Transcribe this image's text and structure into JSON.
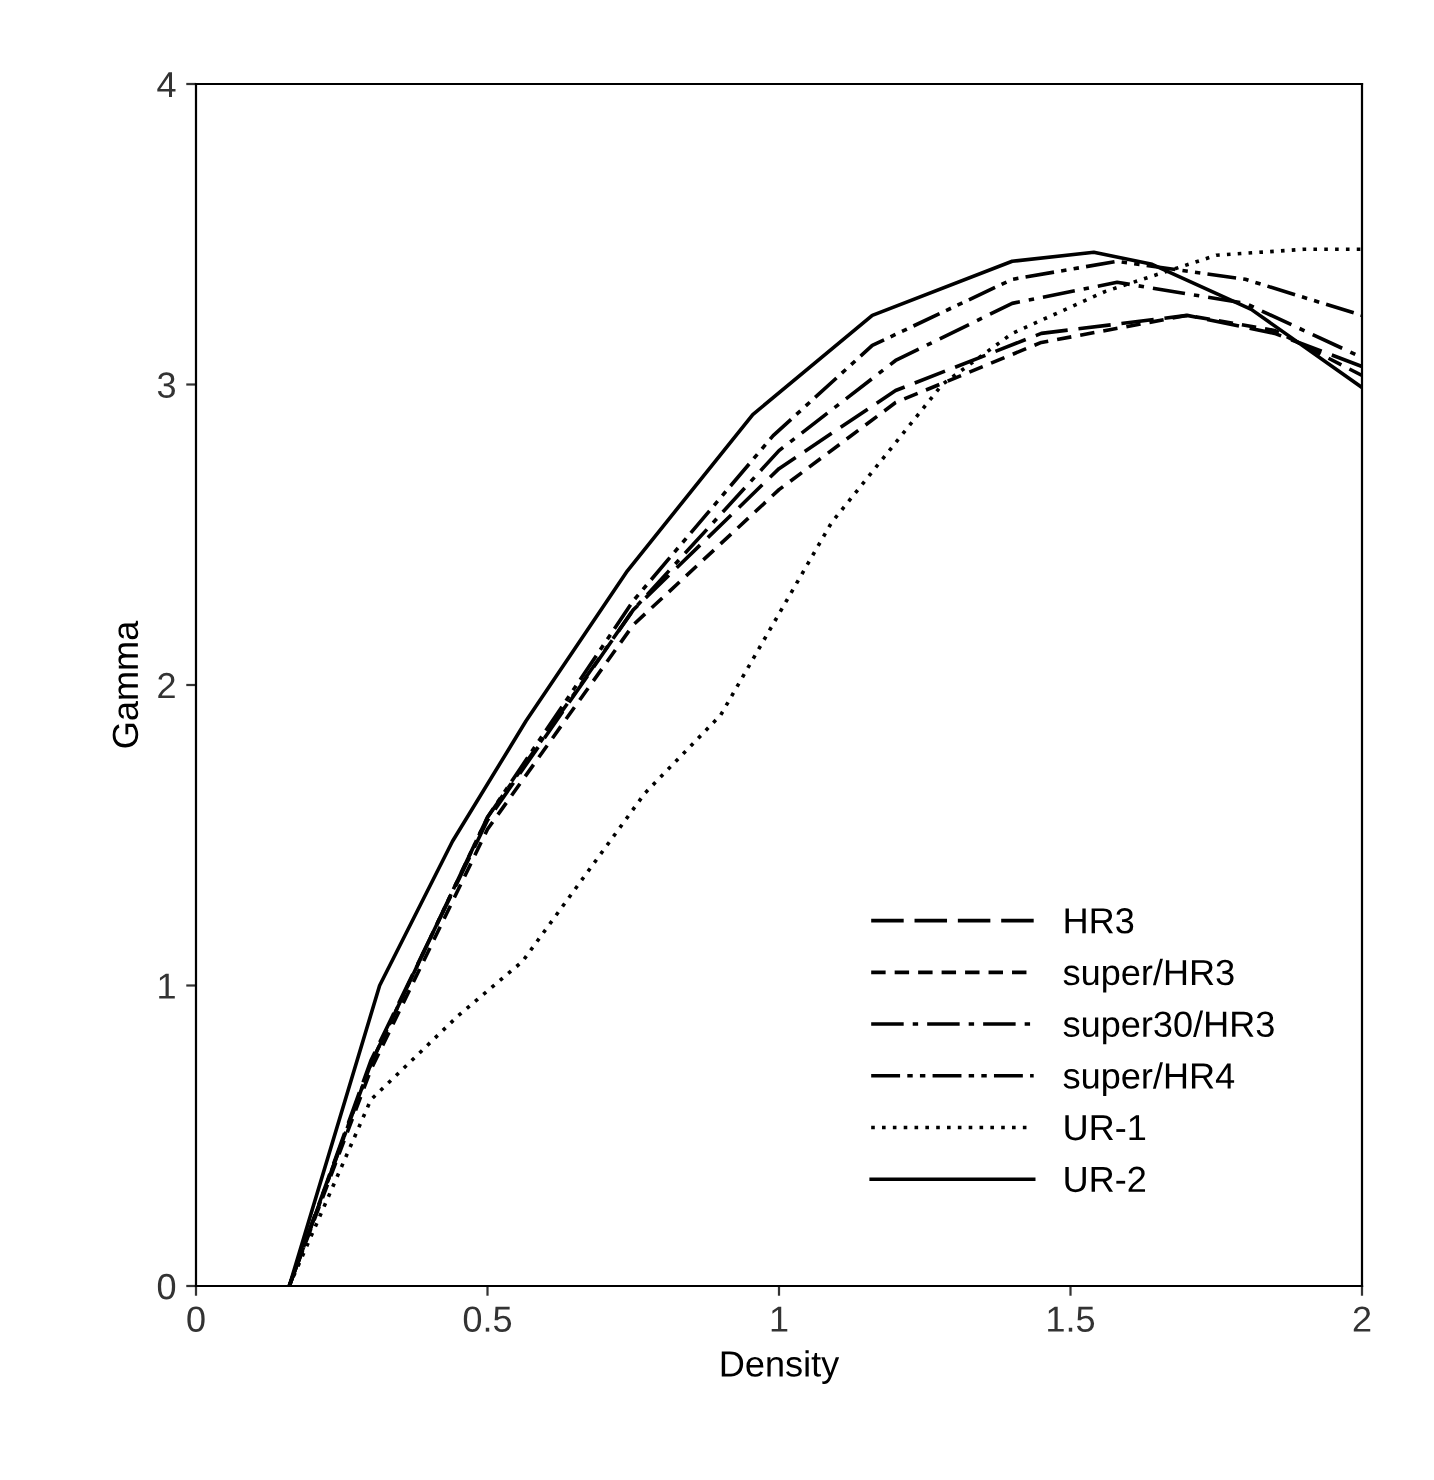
{
  "chart_data": {
    "type": "line",
    "xlabel": "Density",
    "ylabel": "Gamma",
    "xlim": [
      0,
      2
    ],
    "ylim": [
      0,
      4
    ],
    "xticks": [
      0,
      0.5,
      1,
      1.5,
      2
    ],
    "yticks": [
      0,
      1,
      2,
      3,
      4
    ],
    "grid": false,
    "legend": "bottom right",
    "color": "#000000",
    "series": [
      {
        "name": "HR3",
        "line_style": "longdash",
        "x": [
          0.16,
          0.3,
          0.5,
          0.75,
          1.0,
          1.2,
          1.45,
          1.7,
          1.85,
          2.0
        ],
        "values": [
          0,
          0.75,
          1.55,
          2.25,
          2.72,
          2.98,
          3.17,
          3.23,
          3.17,
          3.06
        ]
      },
      {
        "name": "super/HR3",
        "line_style": "dashed",
        "x": [
          0.16,
          0.3,
          0.5,
          0.75,
          1.0,
          1.2,
          1.45,
          1.7,
          1.85,
          2.0
        ],
        "values": [
          0,
          0.72,
          1.52,
          2.2,
          2.65,
          2.94,
          3.14,
          3.23,
          3.18,
          3.03
        ]
      },
      {
        "name": "super30/HR3",
        "line_style": "dashdot",
        "x": [
          0.16,
          0.3,
          0.5,
          0.75,
          1.0,
          1.2,
          1.4,
          1.58,
          1.8,
          2.0
        ],
        "values": [
          0,
          0.74,
          1.56,
          2.25,
          2.78,
          3.08,
          3.27,
          3.34,
          3.27,
          3.09
        ]
      },
      {
        "name": "super/HR4",
        "line_style": "dashdotdot",
        "x": [
          0.16,
          0.3,
          0.5,
          0.75,
          0.99,
          1.16,
          1.4,
          1.58,
          1.8,
          2.0
        ],
        "values": [
          0,
          0.74,
          1.56,
          2.28,
          2.83,
          3.13,
          3.35,
          3.41,
          3.35,
          3.23
        ]
      },
      {
        "name": "UR-1",
        "line_style": "dotted",
        "x": [
          0.16,
          0.3,
          0.45,
          0.56,
          0.77,
          0.9,
          1.09,
          1.28,
          1.4,
          1.56,
          1.75,
          1.9,
          2.0
        ],
        "values": [
          0,
          0.62,
          0.9,
          1.08,
          1.64,
          1.9,
          2.54,
          3.0,
          3.17,
          3.31,
          3.43,
          3.45,
          3.45
        ]
      },
      {
        "name": "UR-2",
        "line_style": "solid",
        "x": [
          0.16,
          0.315,
          0.44,
          0.566,
          0.74,
          0.955,
          1.16,
          1.4,
          1.54,
          1.64,
          1.81,
          2.0
        ],
        "values": [
          0,
          1.0,
          1.48,
          1.88,
          2.38,
          2.9,
          3.23,
          3.41,
          3.44,
          3.4,
          3.25,
          2.99
        ]
      }
    ]
  }
}
